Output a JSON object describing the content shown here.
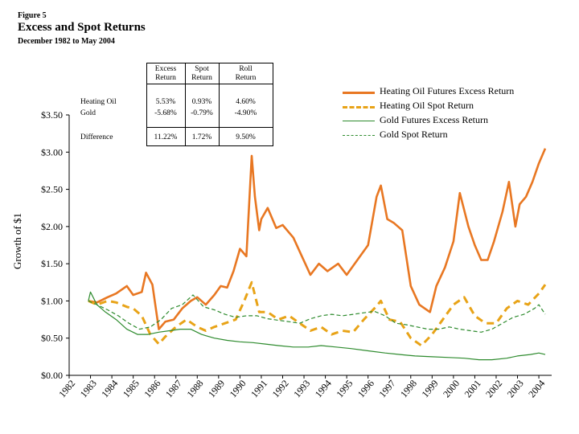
{
  "header": {
    "figure": "Figure 5",
    "title": "Excess and Spot Returns",
    "subtitle": "December 1982 to May 2004"
  },
  "table": {
    "col_headers": [
      [
        "Excess",
        "Return"
      ],
      [
        "Spot",
        "Return"
      ],
      [
        "Roll",
        "Return"
      ]
    ],
    "rows": [
      {
        "label": "Heating Oil",
        "values": [
          "5.53%",
          "0.93%",
          "4.60%"
        ]
      },
      {
        "label": "Gold",
        "values": [
          "-5.68%",
          "-0.79%",
          "-4.90%"
        ]
      },
      {
        "label": "Difference",
        "values": [
          "11.22%",
          "1.72%",
          "9.50%"
        ]
      }
    ]
  },
  "colors": {
    "orange": "#E87722",
    "gold": "#E8A317",
    "green": "#2E8B2E"
  },
  "chart_data": {
    "type": "line",
    "title": "Excess and Spot Returns",
    "xlabel": "",
    "ylabel": "Growth of $1",
    "ylim": [
      0,
      3.5
    ],
    "xlim": [
      1982,
      2004.6
    ],
    "y_ticks": [
      "$0.00",
      "$0.50",
      "$1.00",
      "$1.50",
      "$2.00",
      "$2.50",
      "$3.00",
      "$3.50"
    ],
    "x_ticks": [
      "1982",
      "1983",
      "1984",
      "1985",
      "1986",
      "1987",
      "1988",
      "1989",
      "1990",
      "1991",
      "1992",
      "1993",
      "1994",
      "1995",
      "1996",
      "1997",
      "1998",
      "1999",
      "2000",
      "2001",
      "2002",
      "2003",
      "2004"
    ],
    "legend_position": "top-right",
    "series": [
      {
        "name": "Heating Oil Futures Excess Return",
        "color": "#E87722",
        "dash": "solid",
        "x": [
          1982.9,
          1983.3,
          1983.8,
          1984.2,
          1984.7,
          1985.0,
          1985.4,
          1985.6,
          1985.9,
          1986.2,
          1986.5,
          1986.9,
          1987.3,
          1987.7,
          1988.0,
          1988.4,
          1988.8,
          1989.1,
          1989.4,
          1989.7,
          1990.0,
          1990.3,
          1990.55,
          1990.7,
          1990.9,
          1991.0,
          1991.3,
          1991.7,
          1992.0,
          1992.5,
          1992.9,
          1993.3,
          1993.7,
          1994.1,
          1994.6,
          1995.0,
          1995.5,
          1996.0,
          1996.4,
          1996.6,
          1996.9,
          1997.2,
          1997.6,
          1998.0,
          1998.4,
          1998.9,
          1999.2,
          1999.6,
          2000.0,
          2000.3,
          2000.7,
          2001.0,
          2001.3,
          2001.6,
          2001.9,
          2002.3,
          2002.6,
          2002.9,
          2003.1,
          2003.4,
          2003.7,
          2004.0,
          2004.3
        ],
        "y": [
          1.0,
          0.98,
          1.05,
          1.1,
          1.2,
          1.08,
          1.12,
          1.38,
          1.22,
          0.62,
          0.72,
          0.75,
          0.9,
          1.0,
          1.05,
          0.95,
          1.08,
          1.2,
          1.18,
          1.4,
          1.7,
          1.6,
          2.95,
          2.4,
          1.95,
          2.1,
          2.25,
          1.98,
          2.02,
          1.85,
          1.6,
          1.35,
          1.5,
          1.4,
          1.5,
          1.35,
          1.55,
          1.75,
          2.4,
          2.55,
          2.1,
          2.05,
          1.95,
          1.2,
          0.95,
          0.85,
          1.2,
          1.45,
          1.8,
          2.45,
          2.0,
          1.75,
          1.55,
          1.55,
          1.8,
          2.2,
          2.6,
          2.0,
          2.3,
          2.4,
          2.6,
          2.85,
          3.05
        ]
      },
      {
        "name": "Heating Oil Spot Return",
        "color": "#E8A317",
        "dash": "dashed",
        "x": [
          1982.9,
          1983.3,
          1983.8,
          1984.2,
          1984.7,
          1985.0,
          1985.4,
          1985.8,
          1986.2,
          1986.5,
          1987.0,
          1987.5,
          1988.0,
          1988.4,
          1988.8,
          1989.3,
          1989.8,
          1990.2,
          1990.55,
          1990.9,
          1991.3,
          1991.8,
          1992.3,
          1992.8,
          1993.3,
          1993.8,
          1994.3,
          1994.8,
          1995.3,
          1995.8,
          1996.3,
          1996.6,
          1997.0,
          1997.5,
          1998.0,
          1998.5,
          1999.0,
          1999.5,
          2000.0,
          2000.5,
          2001.0,
          2001.5,
          2002.0,
          2002.5,
          2003.0,
          2003.5,
          2004.0,
          2004.3
        ],
        "y": [
          1.0,
          0.95,
          1.0,
          0.98,
          0.92,
          0.9,
          0.8,
          0.55,
          0.42,
          0.52,
          0.65,
          0.75,
          0.65,
          0.6,
          0.65,
          0.7,
          0.75,
          1.0,
          1.25,
          0.85,
          0.85,
          0.75,
          0.8,
          0.7,
          0.6,
          0.65,
          0.55,
          0.6,
          0.58,
          0.75,
          0.9,
          1.0,
          0.75,
          0.72,
          0.5,
          0.4,
          0.55,
          0.75,
          0.95,
          1.05,
          0.8,
          0.7,
          0.7,
          0.9,
          1.0,
          0.95,
          1.1,
          1.22
        ]
      },
      {
        "name": "Gold Futures Excess Return",
        "color": "#2E8B2E",
        "dash": "solid",
        "x": [
          1982.9,
          1983.0,
          1983.3,
          1983.7,
          1984.2,
          1984.7,
          1985.2,
          1985.7,
          1986.2,
          1986.7,
          1987.2,
          1987.7,
          1988.2,
          1988.8,
          1989.4,
          1990.0,
          1990.6,
          1991.2,
          1991.8,
          1992.5,
          1993.2,
          1993.8,
          1994.5,
          1995.2,
          1996.0,
          1996.8,
          1997.5,
          1998.2,
          1999.0,
          1999.8,
          2000.5,
          2001.2,
          2001.8,
          2002.5,
          2003.0,
          2003.6,
          2004.0,
          2004.3
        ],
        "y": [
          1.0,
          1.12,
          0.95,
          0.85,
          0.75,
          0.62,
          0.55,
          0.55,
          0.58,
          0.6,
          0.62,
          0.62,
          0.55,
          0.5,
          0.47,
          0.45,
          0.44,
          0.42,
          0.4,
          0.38,
          0.38,
          0.4,
          0.38,
          0.36,
          0.33,
          0.3,
          0.28,
          0.26,
          0.25,
          0.24,
          0.23,
          0.21,
          0.21,
          0.23,
          0.26,
          0.28,
          0.3,
          0.28
        ]
      },
      {
        "name": "Gold Spot Return",
        "color": "#2E8B2E",
        "dash": "dashed",
        "x": [
          1982.9,
          1983.3,
          1983.8,
          1984.3,
          1984.8,
          1985.3,
          1985.8,
          1986.3,
          1986.8,
          1987.3,
          1987.8,
          1988.3,
          1988.8,
          1989.3,
          1989.8,
          1990.3,
          1990.8,
          1991.3,
          1991.8,
          1992.3,
          1992.8,
          1993.3,
          1993.8,
          1994.3,
          1994.8,
          1995.3,
          1995.8,
          1996.3,
          1996.8,
          1997.3,
          1997.8,
          1998.3,
          1998.8,
          1999.3,
          1999.8,
          2000.3,
          2000.8,
          2001.3,
          2001.8,
          2002.3,
          2002.8,
          2003.3,
          2003.8,
          2004.0,
          2004.3
        ],
        "y": [
          1.0,
          0.95,
          0.88,
          0.8,
          0.7,
          0.62,
          0.65,
          0.75,
          0.9,
          0.95,
          1.08,
          0.92,
          0.88,
          0.82,
          0.78,
          0.8,
          0.8,
          0.76,
          0.74,
          0.72,
          0.7,
          0.76,
          0.8,
          0.82,
          0.8,
          0.82,
          0.84,
          0.86,
          0.8,
          0.7,
          0.68,
          0.65,
          0.62,
          0.62,
          0.65,
          0.62,
          0.6,
          0.58,
          0.62,
          0.7,
          0.78,
          0.82,
          0.9,
          0.95,
          0.82
        ]
      }
    ]
  }
}
